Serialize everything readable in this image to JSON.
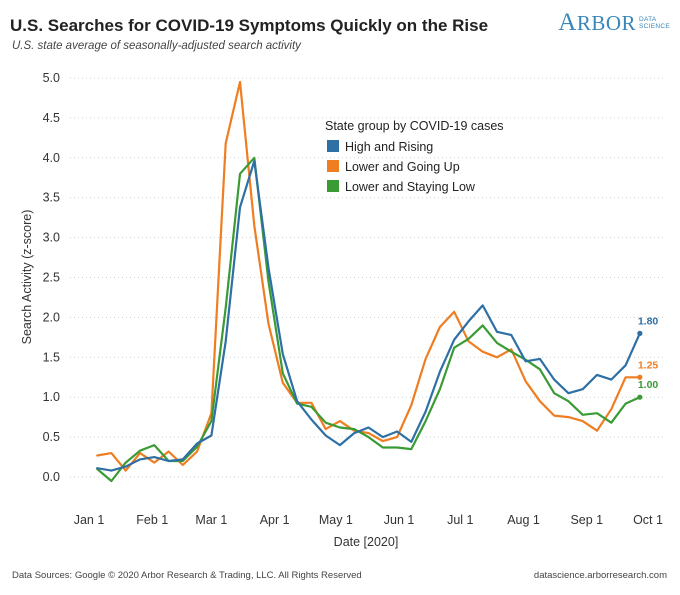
{
  "header": {
    "title": "U.S. Searches for COVID-19 Symptoms Quickly on the Rise",
    "subtitle": "U.S. state average of seasonally-adjusted search activity",
    "logo_cap": "A",
    "logo_rest": "RBOR",
    "logo_sub1": "DATA",
    "logo_sub2": "SCIENCE"
  },
  "footer": {
    "source": "Data Sources: Google © 2020 Arbor Research & Trading, LLC. All Rights Reserved",
    "site": "datascience.arborresearch.com"
  },
  "colors": {
    "high": "#2e6fa4",
    "lower_up": "#ef7d22",
    "lower_low": "#3a9b35"
  },
  "chart_data": {
    "type": "line",
    "xlabel": "Date [2020]",
    "ylabel": "Search Activity (z-score)",
    "ylim": [
      0,
      5
    ],
    "yticks": [
      "0.0",
      "0.5",
      "1.0",
      "1.5",
      "2.0",
      "2.5",
      "3.0",
      "3.5",
      "4.0",
      "4.5",
      "5.0"
    ],
    "xtick_labels": [
      "Jan 1",
      "Feb 1",
      "Mar 1",
      "Apr 1",
      "May 1",
      "Jun 1",
      "Jul 1",
      "Aug 1",
      "Sep 1",
      "Oct 1"
    ],
    "xtick_dates": [
      "2020-01-01",
      "2020-02-01",
      "2020-03-01",
      "2020-04-01",
      "2020-05-01",
      "2020-06-01",
      "2020-07-01",
      "2020-08-01",
      "2020-09-01",
      "2020-10-01"
    ],
    "legend_title": "State group by COVID-19 cases",
    "legend_position": "top-right",
    "grid": "horizontal-dotted",
    "series": [
      {
        "name": "High and Rising",
        "end_label": "1.80",
        "x": [
          "2020-01-05",
          "2020-01-12",
          "2020-01-19",
          "2020-01-26",
          "2020-02-02",
          "2020-02-09",
          "2020-02-16",
          "2020-02-23",
          "2020-03-01",
          "2020-03-08",
          "2020-03-15",
          "2020-03-22",
          "2020-03-29",
          "2020-04-05",
          "2020-04-12",
          "2020-04-19",
          "2020-04-26",
          "2020-05-03",
          "2020-05-10",
          "2020-05-17",
          "2020-05-24",
          "2020-05-31",
          "2020-06-07",
          "2020-06-14",
          "2020-06-21",
          "2020-06-28",
          "2020-07-05",
          "2020-07-12",
          "2020-07-19",
          "2020-07-26",
          "2020-08-02",
          "2020-08-09",
          "2020-08-16",
          "2020-08-23",
          "2020-08-30",
          "2020-09-06",
          "2020-09-13",
          "2020-09-20",
          "2020-09-27"
        ],
        "y": [
          0.11,
          0.08,
          0.13,
          0.22,
          0.25,
          0.2,
          0.22,
          0.42,
          0.52,
          1.7,
          3.38,
          3.96,
          2.62,
          1.54,
          0.95,
          0.72,
          0.52,
          0.4,
          0.55,
          0.62,
          0.5,
          0.57,
          0.44,
          0.82,
          1.32,
          1.72,
          1.95,
          2.15,
          1.82,
          1.78,
          1.45,
          1.48,
          1.22,
          1.05,
          1.1,
          1.28,
          1.22,
          1.4,
          1.8
        ]
      },
      {
        "name": "Lower and Going Up",
        "end_label": "1.25",
        "x": [
          "2020-01-05",
          "2020-01-12",
          "2020-01-19",
          "2020-01-26",
          "2020-02-02",
          "2020-02-09",
          "2020-02-16",
          "2020-02-23",
          "2020-03-01",
          "2020-03-08",
          "2020-03-15",
          "2020-03-22",
          "2020-03-29",
          "2020-04-05",
          "2020-04-12",
          "2020-04-19",
          "2020-04-26",
          "2020-05-03",
          "2020-05-10",
          "2020-05-17",
          "2020-05-24",
          "2020-05-31",
          "2020-06-07",
          "2020-06-14",
          "2020-06-21",
          "2020-06-28",
          "2020-07-05",
          "2020-07-12",
          "2020-07-19",
          "2020-07-26",
          "2020-08-02",
          "2020-08-09",
          "2020-08-16",
          "2020-08-23",
          "2020-08-30",
          "2020-09-06",
          "2020-09-13",
          "2020-09-20",
          "2020-09-27"
        ],
        "y": [
          0.27,
          0.3,
          0.08,
          0.3,
          0.18,
          0.32,
          0.15,
          0.32,
          0.8,
          4.18,
          4.95,
          3.15,
          1.92,
          1.18,
          0.93,
          0.93,
          0.6,
          0.7,
          0.58,
          0.55,
          0.45,
          0.5,
          0.9,
          1.48,
          1.88,
          2.07,
          1.7,
          1.57,
          1.5,
          1.6,
          1.2,
          0.95,
          0.77,
          0.75,
          0.7,
          0.58,
          0.85,
          1.25,
          1.25
        ]
      },
      {
        "name": "Lower and Staying Low",
        "end_label": "1.00",
        "x": [
          "2020-01-05",
          "2020-01-12",
          "2020-01-19",
          "2020-01-26",
          "2020-02-02",
          "2020-02-09",
          "2020-02-16",
          "2020-02-23",
          "2020-03-01",
          "2020-03-08",
          "2020-03-15",
          "2020-03-22",
          "2020-03-29",
          "2020-04-05",
          "2020-04-12",
          "2020-04-19",
          "2020-04-26",
          "2020-05-03",
          "2020-05-10",
          "2020-05-17",
          "2020-05-24",
          "2020-05-31",
          "2020-06-07",
          "2020-06-14",
          "2020-06-21",
          "2020-06-28",
          "2020-07-05",
          "2020-07-12",
          "2020-07-19",
          "2020-07-26",
          "2020-08-02",
          "2020-08-09",
          "2020-08-16",
          "2020-08-23",
          "2020-08-30",
          "2020-09-06",
          "2020-09-13",
          "2020-09-20",
          "2020-09-27"
        ],
        "y": [
          0.1,
          -0.05,
          0.18,
          0.33,
          0.4,
          0.2,
          0.2,
          0.38,
          0.7,
          2.12,
          3.8,
          4.0,
          2.45,
          1.3,
          0.92,
          0.88,
          0.68,
          0.62,
          0.6,
          0.5,
          0.37,
          0.37,
          0.35,
          0.7,
          1.1,
          1.62,
          1.73,
          1.9,
          1.68,
          1.57,
          1.47,
          1.35,
          1.05,
          0.95,
          0.78,
          0.8,
          0.68,
          0.92,
          1.0
        ]
      }
    ]
  }
}
